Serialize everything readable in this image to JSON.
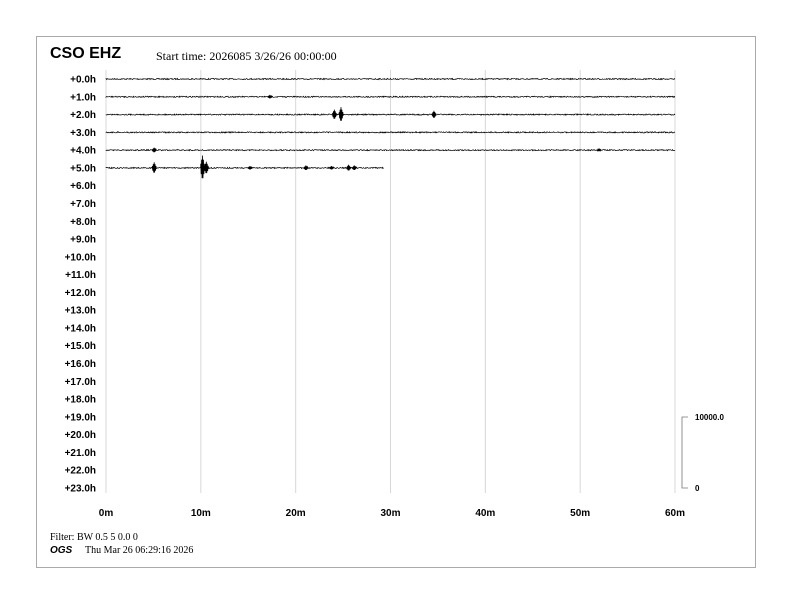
{
  "header": {
    "station": "CSO EHZ",
    "start_time": "Start time: 2026085  3/26/26 00:00:00"
  },
  "footer": {
    "filter": "Filter: BW 0.5 5 0.0 0",
    "org": "OGS",
    "timestamp": "Thu Mar 26 06:29:16 2026"
  },
  "chart_data": {
    "type": "line",
    "title": "CSO EHZ",
    "row_labels": [
      "+0.0h",
      "+1.0h",
      "+2.0h",
      "+3.0h",
      "+4.0h",
      "+5.0h",
      "+6.0h",
      "+7.0h",
      "+8.0h",
      "+9.0h",
      "+10.0h",
      "+11.0h",
      "+12.0h",
      "+13.0h",
      "+14.0h",
      "+15.0h",
      "+16.0h",
      "+17.0h",
      "+18.0h",
      "+19.0h",
      "+20.0h",
      "+21.0h",
      "+22.0h",
      "+23.0h"
    ],
    "x_ticks": [
      "0m",
      "10m",
      "20m",
      "30m",
      "40m",
      "50m",
      "60m"
    ],
    "xlim": [
      0,
      60
    ],
    "grid": true,
    "scale": {
      "top": "10000.0",
      "bottom": "0"
    },
    "trace_color": "#000000",
    "grid_color": "#d8d8d8",
    "traces": [
      {
        "row": 0,
        "end_minute": 60,
        "events": []
      },
      {
        "row": 1,
        "end_minute": 60,
        "events": [
          {
            "minute": 17.3,
            "amp": 0.15
          }
        ]
      },
      {
        "row": 2,
        "end_minute": 60,
        "events": [
          {
            "minute": 24.1,
            "amp": 0.4
          },
          {
            "minute": 24.8,
            "amp": 0.6
          },
          {
            "minute": 34.6,
            "amp": 0.3
          }
        ]
      },
      {
        "row": 3,
        "end_minute": 60,
        "events": []
      },
      {
        "row": 4,
        "end_minute": 60,
        "events": [
          {
            "minute": 5.1,
            "amp": 0.2
          },
          {
            "minute": 52,
            "amp": 0.1
          }
        ]
      },
      {
        "row": 5,
        "end_minute": 29.3,
        "events": [
          {
            "minute": 5.1,
            "amp": 0.45
          },
          {
            "minute": 10.2,
            "amp": 1.0
          },
          {
            "minute": 10.6,
            "amp": 0.5
          },
          {
            "minute": 15.2,
            "amp": 0.15
          },
          {
            "minute": 21.1,
            "amp": 0.2
          },
          {
            "minute": 23.8,
            "amp": 0.15
          },
          {
            "minute": 25.6,
            "amp": 0.25
          },
          {
            "minute": 26.2,
            "amp": 0.2
          }
        ]
      }
    ]
  }
}
